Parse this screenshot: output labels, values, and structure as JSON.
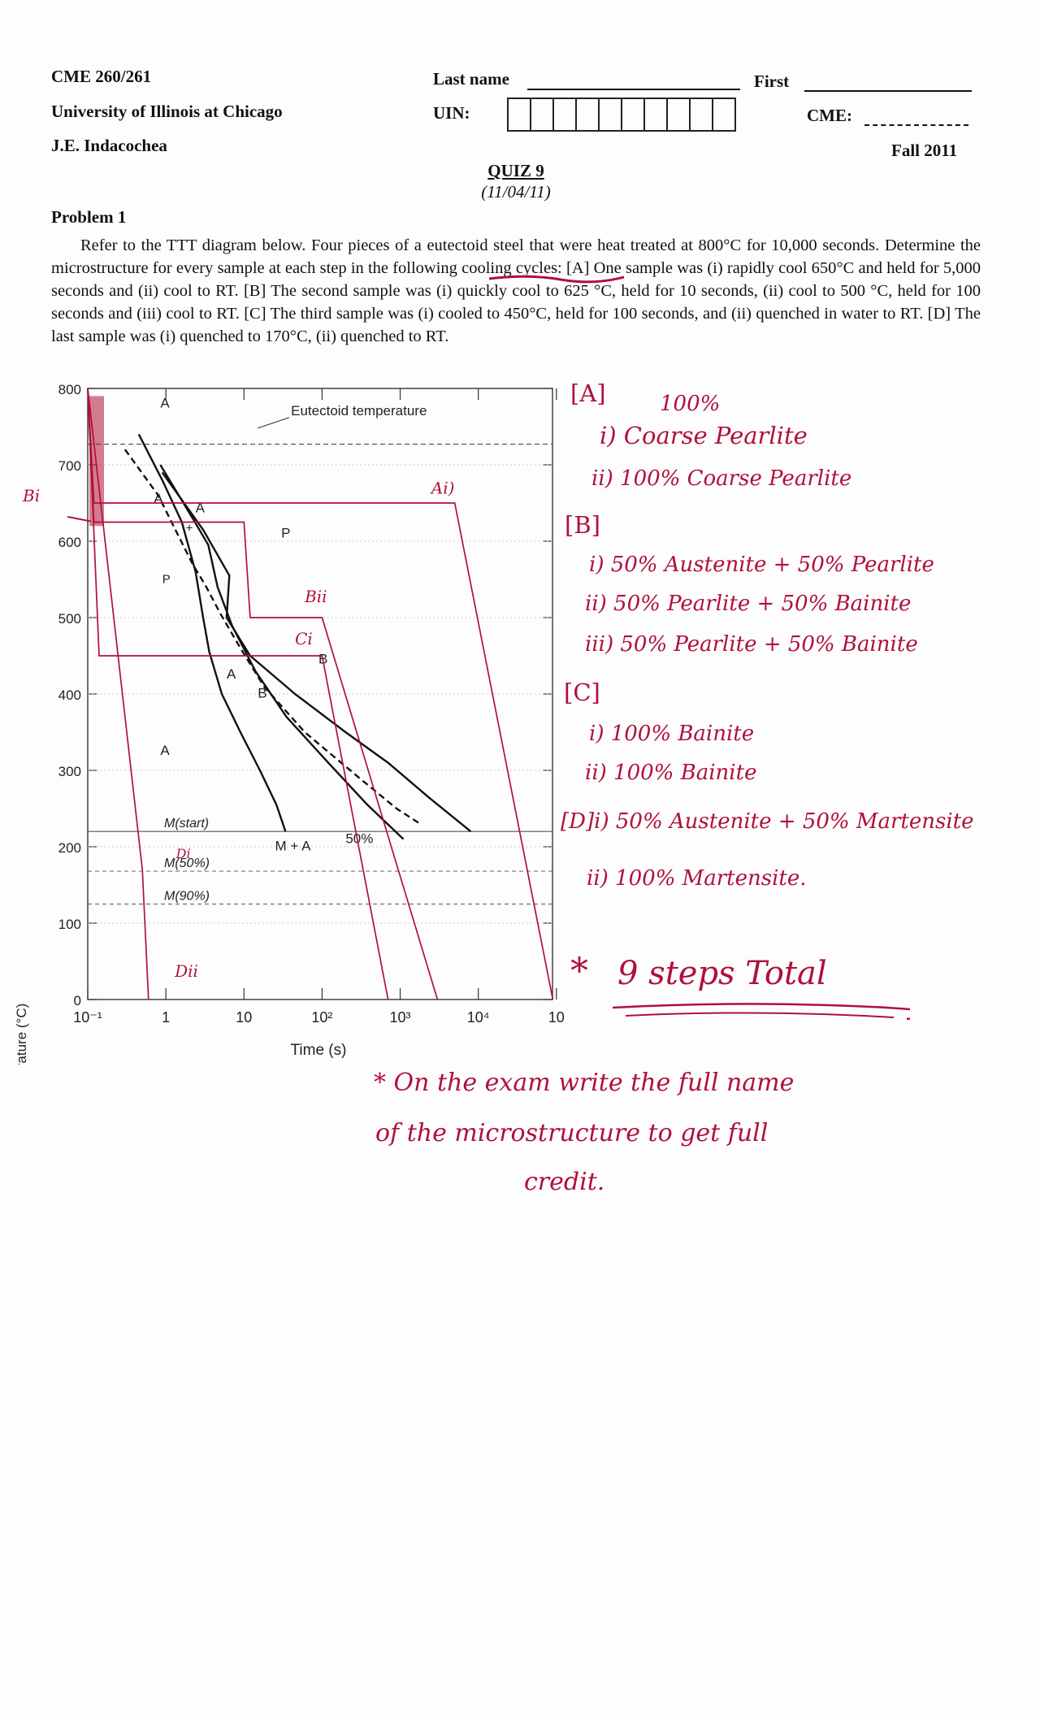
{
  "header": {
    "course": "CME 260/261",
    "university": "University of Illinois at Chicago",
    "instructor": "J.E. Indacochea",
    "last_name_label": "Last name",
    "first_label": "First",
    "uin_label": "UIN:",
    "cme_label": "CME:",
    "term": "Fall 2011",
    "uin_box_count": 10
  },
  "quiz": {
    "title": "QUIZ 9",
    "date": "(11/04/11)"
  },
  "problem": {
    "heading": "Problem 1",
    "text": "Refer to the TTT diagram below.  Four pieces of a eutectoid steel that were heat treated at 800°C for 10,000 seconds. Determine the microstructure for every sample at each step in the following cooling cycles: [A] One sample was (i) rapidly cool 650°C and held for 5,000 seconds and (ii) cool to RT. [B]  The second sample was (i) quickly cool to 625 °C, held for 10 seconds, (ii) cool to 500 °C, held for 100 seconds and (iii) cool to RT. [C] The third sample was (i) cooled to 450°C, held for 100 seconds, and (ii) quenched in water to RT. [D] The last sample was (i) quenched to 170°C, (ii) quenched to RT."
  },
  "chart_data": {
    "type": "line",
    "xlabel": "Time (s)",
    "ylabel": "Temperature (°C)",
    "x_scale": "log",
    "xlim": [
      0.1,
      100000
    ],
    "ylim": [
      0,
      800
    ],
    "x_ticks": [
      "10⁻¹",
      "1",
      "10",
      "10²",
      "10³",
      "10⁴",
      "10"
    ],
    "y_ticks": [
      "0",
      "100",
      "200",
      "300",
      "400",
      "500",
      "600",
      "700",
      "800"
    ],
    "eutectoid_temperature": 727,
    "region_labels": [
      "A",
      "A",
      "A",
      "P",
      "B",
      "A",
      "B",
      "A",
      "M + A",
      "50%"
    ],
    "annotations": [
      "Eutectoid temperature",
      "M(start)",
      "M(50%)",
      "M(90%)",
      "P",
      "+"
    ],
    "martensite_lines": [
      {
        "name": "M(start)",
        "temperature": 220
      },
      {
        "name": "M(50%)",
        "temperature": 168
      },
      {
        "name": "M(90%)",
        "temperature": 125
      }
    ],
    "series": [
      {
        "values": [
          [
            0.45,
            740
          ],
          [
            0.9,
            680
          ],
          [
            1.6,
            625
          ],
          [
            2.4,
            560
          ],
          [
            3.0,
            500
          ],
          [
            3.6,
            455
          ],
          [
            5.2,
            400
          ],
          [
            9,
            350
          ],
          [
            16,
            300
          ],
          [
            26,
            255
          ],
          [
            34,
            220
          ]
        ]
      },
      {
        "values": [
          [
            0.85,
            700
          ],
          [
            2.2,
            630
          ],
          [
            3.5,
            595
          ],
          [
            4.6,
            540
          ],
          [
            7,
            490
          ],
          [
            14,
            430
          ],
          [
            35,
            370
          ],
          [
            120,
            310
          ],
          [
            380,
            255
          ],
          [
            1100,
            210
          ]
        ]
      },
      {
        "values": [
          [
            0.9,
            690
          ],
          [
            3,
            615
          ],
          [
            6.5,
            555
          ],
          [
            6,
            500
          ],
          [
            12,
            450
          ],
          [
            45,
            400
          ],
          [
            200,
            350
          ],
          [
            700,
            310
          ],
          [
            2300,
            265
          ],
          [
            8000,
            220
          ]
        ]
      },
      {
        "values": [
          [
            0.3,
            720
          ],
          [
            0.8,
            660
          ],
          [
            1.4,
            610
          ],
          [
            2.2,
            570
          ],
          [
            3.3,
            540
          ],
          [
            5.0,
            505
          ],
          [
            9,
            460
          ],
          [
            18,
            410
          ],
          [
            60,
            350
          ],
          [
            300,
            290
          ],
          [
            900,
            250
          ],
          [
            1800,
            230
          ]
        ]
      }
    ],
    "cooling_paths": [
      {
        "name": "A",
        "points": [
          [
            0.1,
            800
          ],
          [
            0.12,
            650
          ],
          [
            5000,
            650
          ],
          [
            90000,
            0
          ]
        ]
      },
      {
        "name": "B",
        "points": [
          [
            0.1,
            800
          ],
          [
            0.12,
            625
          ],
          [
            10,
            625
          ],
          [
            12,
            500
          ],
          [
            100,
            500
          ],
          [
            3000,
            0
          ]
        ]
      },
      {
        "name": "C",
        "points": [
          [
            0.1,
            800
          ],
          [
            0.14,
            450
          ],
          [
            100,
            450
          ],
          [
            700,
            0
          ]
        ]
      },
      {
        "name": "D",
        "points": [
          [
            0.1,
            800
          ],
          [
            0.5,
            170
          ],
          [
            0.6,
            0
          ]
        ]
      }
    ]
  },
  "handwritten_plot_labels": {
    "ai": "Ai)",
    "bi_left": "Bi",
    "bii": "Bii",
    "ci": "Ci",
    "di": "Di",
    "dii": "Dii"
  },
  "answers": {
    "a_header": "[A]",
    "a_pct": "100%",
    "a_i": "i) Coarse Pearlite",
    "a_ii": "ii) 100% Coarse Pearlite",
    "b_header": "[B]",
    "b_i": "i) 50% Austenite + 50% Pearlite",
    "b_ii": "ii) 50% Pearlite + 50% Bainite",
    "b_iii": "iii) 50% Pearlite + 50% Bainite",
    "c_header": "[C]",
    "c_i": "i) 100% Bainite",
    "c_ii": "ii) 100% Bainite",
    "d_i": "[D]i) 50% Austenite + 50% Martensite",
    "d_ii": "ii) 100% Martensite."
  },
  "notes": {
    "steps_star": "*",
    "steps": "9 steps Total",
    "exam_line1": "* On the exam write the full name",
    "exam_line2": "of the microstructure to get full",
    "exam_line3": "credit."
  },
  "colors": {
    "ink": "#111111",
    "pen": "#b0103a"
  }
}
